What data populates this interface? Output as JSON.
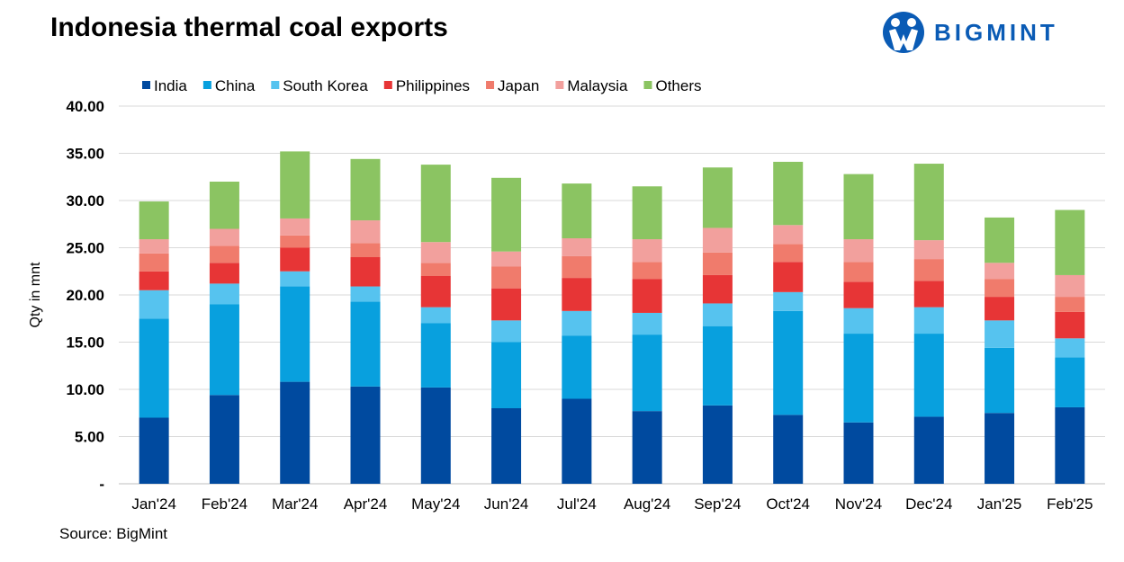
{
  "title": "Indonesia thermal coal exports",
  "logo": {
    "text": "BIGMINT"
  },
  "source": "Source: BigMint",
  "colors": {
    "India": "#004a9f",
    "China": "#08a0de",
    "South Korea": "#56c3ef",
    "Philippines": "#e73536",
    "Japan": "#f07b6c",
    "Malaysia": "#f2a09d",
    "Others": "#8bc462",
    "brand": "#0a5bb5"
  },
  "chart_data": {
    "type": "bar",
    "stacked": true,
    "title": "Indonesia thermal coal exports",
    "xlabel": "",
    "ylabel": "Qty in mnt",
    "ylim": [
      0,
      40
    ],
    "yticks": [
      "-",
      "5.00",
      "10.00",
      "15.00",
      "20.00",
      "25.00",
      "30.00",
      "35.00",
      "40.00"
    ],
    "grid": true,
    "legend": "top",
    "categories": [
      "Jan'24",
      "Feb'24",
      "Mar'24",
      "Apr'24",
      "May'24",
      "Jun'24",
      "Jul'24",
      "Aug'24",
      "Sep'24",
      "Oct'24",
      "Nov'24",
      "Dec'24",
      "Jan'25",
      "Feb'25"
    ],
    "series": [
      {
        "name": "India",
        "values": [
          7.0,
          9.4,
          10.8,
          10.3,
          10.2,
          8.0,
          9.0,
          7.7,
          8.3,
          7.3,
          6.5,
          7.1,
          7.5,
          8.1
        ]
      },
      {
        "name": "China",
        "values": [
          10.5,
          9.6,
          10.1,
          9.0,
          6.8,
          7.0,
          6.7,
          8.1,
          8.4,
          11.0,
          9.4,
          8.8,
          6.9,
          5.3
        ]
      },
      {
        "name": "South Korea",
        "values": [
          3.0,
          2.2,
          1.6,
          1.6,
          1.7,
          2.3,
          2.6,
          2.3,
          2.4,
          2.0,
          2.7,
          2.8,
          2.9,
          2.0
        ]
      },
      {
        "name": "Philippines",
        "values": [
          2.0,
          2.2,
          2.5,
          3.1,
          3.3,
          3.4,
          3.5,
          3.6,
          3.0,
          3.2,
          2.8,
          2.8,
          2.5,
          2.8
        ]
      },
      {
        "name": "Japan",
        "values": [
          1.9,
          1.8,
          1.3,
          1.5,
          1.4,
          2.3,
          2.3,
          1.8,
          2.4,
          1.9,
          2.1,
          2.3,
          1.9,
          1.6
        ]
      },
      {
        "name": "Malaysia",
        "values": [
          1.5,
          1.8,
          1.8,
          2.4,
          2.2,
          1.6,
          1.9,
          2.4,
          2.6,
          2.0,
          2.4,
          2.0,
          1.7,
          2.3
        ]
      },
      {
        "name": "Others",
        "values": [
          4.0,
          5.0,
          7.1,
          6.5,
          8.2,
          7.8,
          5.8,
          5.6,
          6.4,
          6.7,
          6.9,
          8.1,
          4.8,
          6.9
        ]
      }
    ]
  }
}
